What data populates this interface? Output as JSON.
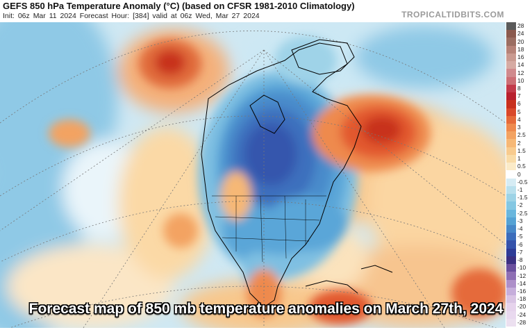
{
  "header": {
    "title": "GEFS 850 hPa Temperature Anomaly (°C) (based on CFSR 1981-2010 Climatology)",
    "subtitle": "Init: 06z Mar 11 2024   Forecast Hour: [384]   valid at 06z Wed, Mar 27 2024",
    "brand": "TROPICALTIDBITS.COM"
  },
  "caption": "Forecast map of 850 mb temperature anomalies on March 27th, 2024",
  "colorbar": {
    "labels": [
      "28",
      "24",
      "20",
      "18",
      "16",
      "14",
      "12",
      "10",
      "8",
      "7",
      "6",
      "5",
      "4",
      "3",
      "2.5",
      "2",
      "1.5",
      "1",
      "0.5",
      "0",
      "-0.5",
      "-1",
      "-1.5",
      "-2",
      "-2.5",
      "-3",
      "-4",
      "-5",
      "-6",
      "-7",
      "-8",
      "-10",
      "-12",
      "-14",
      "-16",
      "-18",
      "-20",
      "-24",
      "-28"
    ],
    "colors": [
      "#5a5a5a",
      "#8b5a4e",
      "#9b6e62",
      "#b68378",
      "#c99a90",
      "#d6aba3",
      "#d08a8d",
      "#cc6f75",
      "#c23a4a",
      "#b8202e",
      "#c8301d",
      "#d9482a",
      "#e56a3a",
      "#ee8a4e",
      "#f3a362",
      "#f6b876",
      "#f8cb8e",
      "#f9dca8",
      "#fbebc8",
      "#ffffff",
      "#d6ecf4",
      "#b9e0ed",
      "#9dd3e6",
      "#84c7e2",
      "#69b6dd",
      "#55a2d4",
      "#4788c8",
      "#3c6dbb",
      "#3452ab",
      "#2d3b97",
      "#3a2f82",
      "#6a4f9e",
      "#8e6fb4",
      "#ad8fc9",
      "#c6aedb",
      "#d9c4e4",
      "#e6d3ec",
      "#e9d9ef",
      "#ece0f0"
    ]
  }
}
